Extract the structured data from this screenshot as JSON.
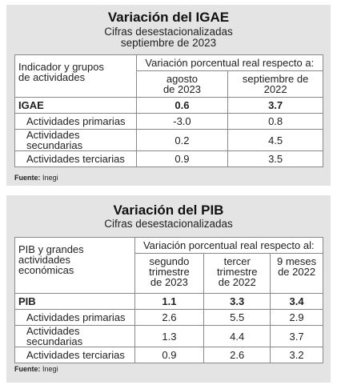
{
  "igae": {
    "title": "Variación del IGAE",
    "subtitle": [
      "Cifras desestacionalizadas",
      "septiembre de 2023"
    ],
    "table": {
      "corner": "Indicador y grupos\nde actividades",
      "group_header": "Variación porcentual real respecto a:",
      "columns": [
        "agosto\nde 2023",
        "septiembre de\n2022"
      ],
      "rows": [
        [
          "IGAE",
          "0.6",
          "3.7"
        ],
        [
          "Actividades primarias",
          "-3.0",
          "0.8"
        ],
        [
          "Actividades secundarias",
          "0.2",
          "4.5"
        ],
        [
          "Actividades terciarias",
          "0.9",
          "3.5"
        ]
      ]
    },
    "source_label": "Fuente:",
    "source": "Inegi"
  },
  "pib": {
    "title": "Variación del PIB",
    "subtitle": [
      "Cifras desestacionalizadas"
    ],
    "table": {
      "corner": "PIB y grandes\nactividades\neconómicas",
      "group_header": "Variación porcentual real respecto al:",
      "columns": [
        "segundo\ntrimestre\nde 2023",
        "tercer\ntrimestre\nde 2022",
        "9 meses\nde 2022"
      ],
      "rows": [
        [
          "PIB",
          "1.1",
          "3.3",
          "3.4"
        ],
        [
          "Actividades primarias",
          "2.6",
          "5.5",
          "2.9"
        ],
        [
          "Actividades secundarias",
          "1.3",
          "4.4",
          "3.7"
        ],
        [
          "Actividades terciarias",
          "0.9",
          "2.6",
          "3.2"
        ]
      ]
    },
    "source_label": "Fuente:",
    "source": "Inegi"
  }
}
